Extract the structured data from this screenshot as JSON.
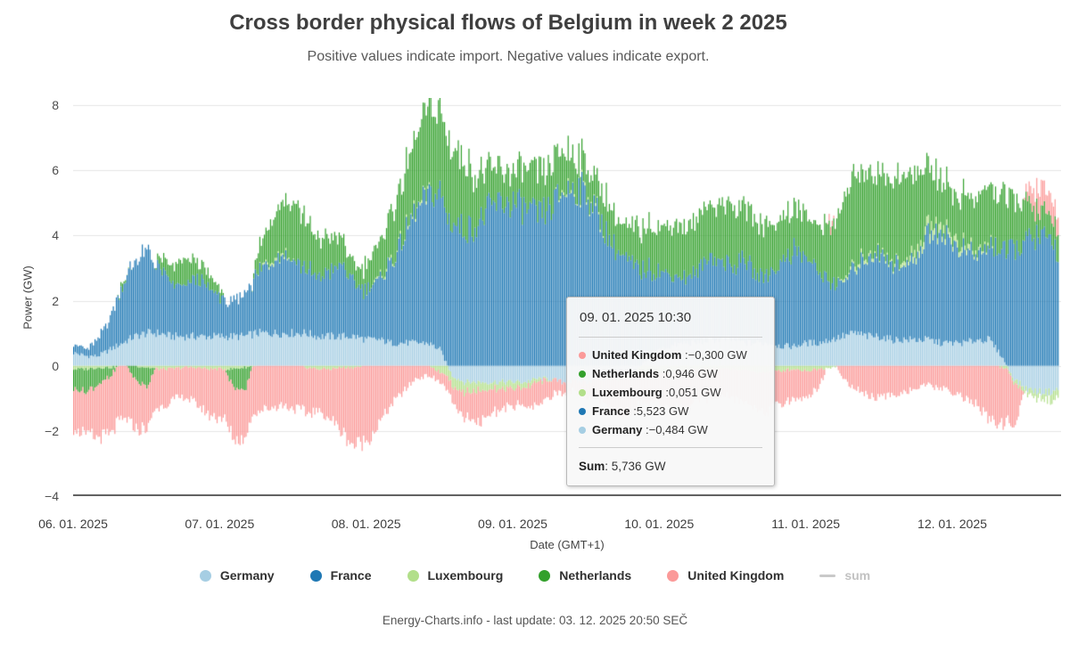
{
  "header": {
    "title": "Cross border physical flows of Belgium in week 2 2025",
    "subtitle": "Positive values indicate import. Negative values indicate export."
  },
  "chart_data": {
    "type": "bar",
    "stacking": "normal",
    "title": "Cross border physical flows of Belgium in week 2 2025",
    "xlabel": "Date (GMT+1)",
    "ylabel": "Power (GW)",
    "unit": "GW",
    "ylim": [
      -4,
      8
    ],
    "yticks": [
      8,
      6,
      4,
      2,
      0,
      -2,
      -4
    ],
    "ytick_labels": [
      "8",
      "6",
      "4",
      "2",
      "0",
      "−2",
      "−4"
    ],
    "x_tick_labels": [
      "06. 01. 2025",
      "07. 01. 2025",
      "08. 01. 2025",
      "09. 01. 2025",
      "10. 01. 2025",
      "11. 01. 2025",
      "12. 01. 2025"
    ],
    "x_start": "06. 01. 2025 00:00",
    "resolution_minutes": 120,
    "values_note": "estimated from pixels, GW, every 2 h starting 06.01.2025 00:00",
    "series": [
      {
        "name": "Germany",
        "color": "#a6cee3",
        "values": [
          0.4,
          0.3,
          0.3,
          0.5,
          0.7,
          0.9,
          1.0,
          1.0,
          0.9,
          0.9,
          0.9,
          0.9,
          0.9,
          0.9,
          0.9,
          1.0,
          1.0,
          1.0,
          1.0,
          1.0,
          0.9,
          0.9,
          0.9,
          0.9,
          0.8,
          0.8,
          0.7,
          0.7,
          0.7,
          0.7,
          0.5,
          -0.3,
          -0.5,
          -0.5,
          -0.5,
          -0.5,
          -0.5,
          -0.5,
          -0.4,
          -0.4,
          -0.5,
          -0.5,
          -0.5,
          -0.4,
          -0.4,
          -0.3,
          -0.2,
          0.2,
          0.5,
          0.6,
          0.7,
          0.7,
          0.8,
          0.8,
          0.8,
          0.7,
          0.7,
          0.7,
          0.6,
          0.6,
          0.7,
          0.7,
          0.8,
          0.9,
          1.0,
          0.9,
          0.9,
          0.8,
          0.8,
          0.8,
          0.8,
          0.7,
          0.7,
          0.7,
          0.8,
          0.8,
          0.3,
          -0.4,
          -0.7,
          -0.8,
          -0.8,
          -0.7,
          -0.7,
          -0.7
        ]
      },
      {
        "name": "France",
        "color": "#1f78b4",
        "values": [
          0.3,
          0.2,
          0.5,
          1.0,
          1.8,
          2.3,
          2.5,
          2.0,
          1.6,
          1.5,
          1.8,
          1.5,
          1.2,
          1.0,
          1.3,
          1.8,
          2.2,
          2.5,
          2.3,
          2.0,
          1.8,
          2.0,
          2.2,
          1.6,
          1.5,
          1.8,
          2.5,
          3.2,
          4.0,
          4.5,
          4.8,
          4.4,
          4.2,
          4.3,
          4.8,
          5.0,
          5.0,
          4.8,
          4.6,
          4.8,
          5.3,
          5.5,
          5.3,
          4.6,
          3.8,
          3.3,
          3.0,
          2.8,
          2.4,
          2.2,
          2.0,
          2.1,
          2.6,
          2.4,
          2.2,
          2.6,
          2.0,
          2.2,
          2.6,
          3.0,
          2.6,
          2.2,
          1.8,
          1.6,
          2.0,
          2.4,
          2.6,
          2.4,
          2.2,
          2.6,
          3.2,
          3.5,
          3.0,
          2.8,
          2.6,
          2.9,
          3.3,
          3.6,
          3.8,
          4.0,
          3.8,
          3.4,
          3.2,
          3.0
        ]
      },
      {
        "name": "Luxembourg",
        "color": "#b2df8a",
        "values": [
          -0.1,
          -0.1,
          -0.05,
          -0.05,
          0,
          0,
          -0.05,
          -0.1,
          -0.1,
          -0.05,
          -0.05,
          -0.1,
          -0.1,
          -0.1,
          -0.05,
          0,
          0.05,
          0.05,
          0,
          -0.05,
          -0.1,
          -0.1,
          -0.05,
          -0.05,
          0,
          0.05,
          0.05,
          0.05,
          0.05,
          0.05,
          -0.2,
          -0.3,
          -0.3,
          -0.25,
          -0.2,
          -0.2,
          -0.2,
          -0.15,
          -0.1,
          -0.05,
          0.05,
          0.05,
          0.05,
          0.05,
          -0.05,
          -0.1,
          -0.15,
          -0.2,
          -0.2,
          -0.2,
          -0.15,
          -0.1,
          -0.1,
          -0.1,
          -0.1,
          -0.15,
          -0.2,
          -0.2,
          -0.15,
          -0.1,
          -0.15,
          -0.1,
          -0.05,
          0.05,
          0.1,
          0.1,
          0.05,
          0.05,
          0.1,
          0.2,
          0.3,
          0.2,
          0.2,
          0.15,
          0.1,
          0.05,
          -0.05,
          -0.1,
          -0.15,
          -0.2,
          -0.25,
          -0.2,
          -0.2,
          -0.2
        ]
      },
      {
        "name": "Netherlands",
        "color": "#33a02c",
        "values": [
          -0.6,
          -0.7,
          -0.5,
          -0.3,
          0.2,
          -0.4,
          -0.6,
          0.3,
          0.5,
          0.8,
          0.6,
          0.4,
          0.3,
          -0.5,
          -0.8,
          0.5,
          1.2,
          1.5,
          1.8,
          1.5,
          1.2,
          1.0,
          0.8,
          0.5,
          0.8,
          1.0,
          1.5,
          1.8,
          2.2,
          2.5,
          2.6,
          2.4,
          2.0,
          1.6,
          1.2,
          1.0,
          1.0,
          1.2,
          1.3,
          1.2,
          1.3,
          1.0,
          0.9,
          1.0,
          1.1,
          1.0,
          1.2,
          1.3,
          1.4,
          1.5,
          1.6,
          1.5,
          1.6,
          1.7,
          1.8,
          1.7,
          1.6,
          1.5,
          1.4,
          1.3,
          1.3,
          1.4,
          1.8,
          2.4,
          2.8,
          2.6,
          2.4,
          2.5,
          2.7,
          2.3,
          1.8,
          1.5,
          1.4,
          1.5,
          1.6,
          1.8,
          1.7,
          1.5,
          1.2,
          0.8,
          0.6,
          0.8,
          1.0,
          1.0
        ]
      },
      {
        "name": "United Kingdom",
        "color": "#fb9a99",
        "values": [
          -1.2,
          -1.3,
          -1.6,
          -1.8,
          -1.7,
          -1.5,
          -1.3,
          -1.2,
          -1.0,
          -0.9,
          -1.1,
          -1.4,
          -1.5,
          -1.6,
          -1.5,
          -1.4,
          -1.3,
          -1.2,
          -1.3,
          -1.4,
          -1.3,
          -1.5,
          -2.0,
          -2.4,
          -2.3,
          -1.8,
          -1.2,
          -0.8,
          -0.4,
          -0.3,
          -0.3,
          -0.5,
          -0.8,
          -1.0,
          -0.8,
          -0.6,
          -0.5,
          -0.6,
          -0.8,
          -0.5,
          -0.3,
          -0.3,
          -0.4,
          -0.6,
          -0.9,
          -1.1,
          -1.0,
          -0.9,
          -1.0,
          -1.1,
          -1.2,
          -1.0,
          -0.9,
          -0.8,
          -0.9,
          -1.0,
          -1.1,
          -1.2,
          -1.0,
          -0.9,
          -0.8,
          -0.6,
          0.3,
          -0.4,
          -0.7,
          -0.9,
          -1.0,
          -0.9,
          -0.8,
          -0.7,
          -0.6,
          -0.7,
          -0.8,
          -1.0,
          -1.2,
          -1.7,
          -1.8,
          -1.4,
          0.3,
          0.7,
          0.6,
          0.5,
          0.4,
          0.3
        ]
      }
    ],
    "sum_series": {
      "name": "sum",
      "disabled": true
    },
    "grid": "horizontal",
    "legend_position": "bottom"
  },
  "tooltip": {
    "timestamp": "09. 01. 2025 10:30",
    "rows": [
      {
        "name": "United Kingdom",
        "color": "#fb9a99",
        "value": "−0,300 GW"
      },
      {
        "name": "Netherlands",
        "color": "#33a02c",
        "value": "0,946 GW"
      },
      {
        "name": "Luxembourg",
        "color": "#b2df8a",
        "value": "0,051 GW"
      },
      {
        "name": "France",
        "color": "#1f78b4",
        "value": "5,523 GW"
      },
      {
        "name": "Germany",
        "color": "#a6cee3",
        "value": "−0,484 GW"
      }
    ],
    "sum_label": "Sum",
    "sum_value": ": 5,736 GW"
  },
  "legend": {
    "items": [
      {
        "label": "Germany",
        "color": "#a6cee3",
        "marker": "circle",
        "disabled": false
      },
      {
        "label": "France",
        "color": "#1f78b4",
        "marker": "circle",
        "disabled": false
      },
      {
        "label": "Luxembourg",
        "color": "#b2df8a",
        "marker": "circle",
        "disabled": false
      },
      {
        "label": "Netherlands",
        "color": "#33a02c",
        "marker": "circle",
        "disabled": false
      },
      {
        "label": "United Kingdom",
        "color": "#fb9a99",
        "marker": "circle",
        "disabled": false
      },
      {
        "label": "sum",
        "color": "#c9c9c9",
        "marker": "line",
        "disabled": true
      }
    ]
  },
  "footer": {
    "credit": "Energy-Charts.info - last update: 03. 12. 2025 20:50 SEČ"
  }
}
